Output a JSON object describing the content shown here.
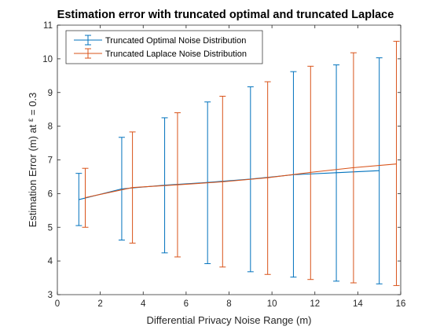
{
  "chart_data": {
    "type": "line",
    "title": "Estimation error with truncated optimal and truncated Laplace",
    "xlabel": "Differential Privacy Noise Range (m)",
    "ylabel_prefix": "Estimation Error (m) at ",
    "ylabel_symbol": "ε",
    "ylabel_suffix": " = 0.3",
    "xlim": [
      0,
      16
    ],
    "ylim": [
      3,
      11
    ],
    "xticks": [
      0,
      2,
      4,
      6,
      8,
      10,
      12,
      14,
      16
    ],
    "yticks": [
      3,
      4,
      5,
      6,
      7,
      8,
      9,
      10,
      11
    ],
    "legend_position": "top-left",
    "grid": false,
    "error_bars": true,
    "series": [
      {
        "name": "Truncated Optimal Noise Distribution",
        "color": "#0072BD",
        "x": [
          1,
          3,
          5,
          7,
          9,
          11,
          13,
          15
        ],
        "y": [
          5.82,
          6.14,
          6.25,
          6.33,
          6.43,
          6.56,
          6.62,
          6.68
        ],
        "lower": [
          5.05,
          4.62,
          4.24,
          3.92,
          3.68,
          3.52,
          3.4,
          3.32
        ],
        "upper": [
          6.6,
          7.67,
          8.25,
          8.72,
          9.17,
          9.62,
          9.82,
          10.03
        ]
      },
      {
        "name": "Truncated Laplace Noise Distribution",
        "color": "#D95319",
        "x": [
          1.3,
          3.5,
          5.6,
          7.7,
          9.8,
          11.8,
          13.8,
          15.8
        ],
        "y": [
          5.88,
          6.18,
          6.26,
          6.35,
          6.47,
          6.63,
          6.77,
          6.88
        ],
        "lower": [
          5.0,
          4.53,
          4.12,
          3.82,
          3.6,
          3.45,
          3.35,
          3.27
        ],
        "upper": [
          6.75,
          7.83,
          8.4,
          8.89,
          9.32,
          9.78,
          10.18,
          10.52
        ]
      }
    ]
  }
}
